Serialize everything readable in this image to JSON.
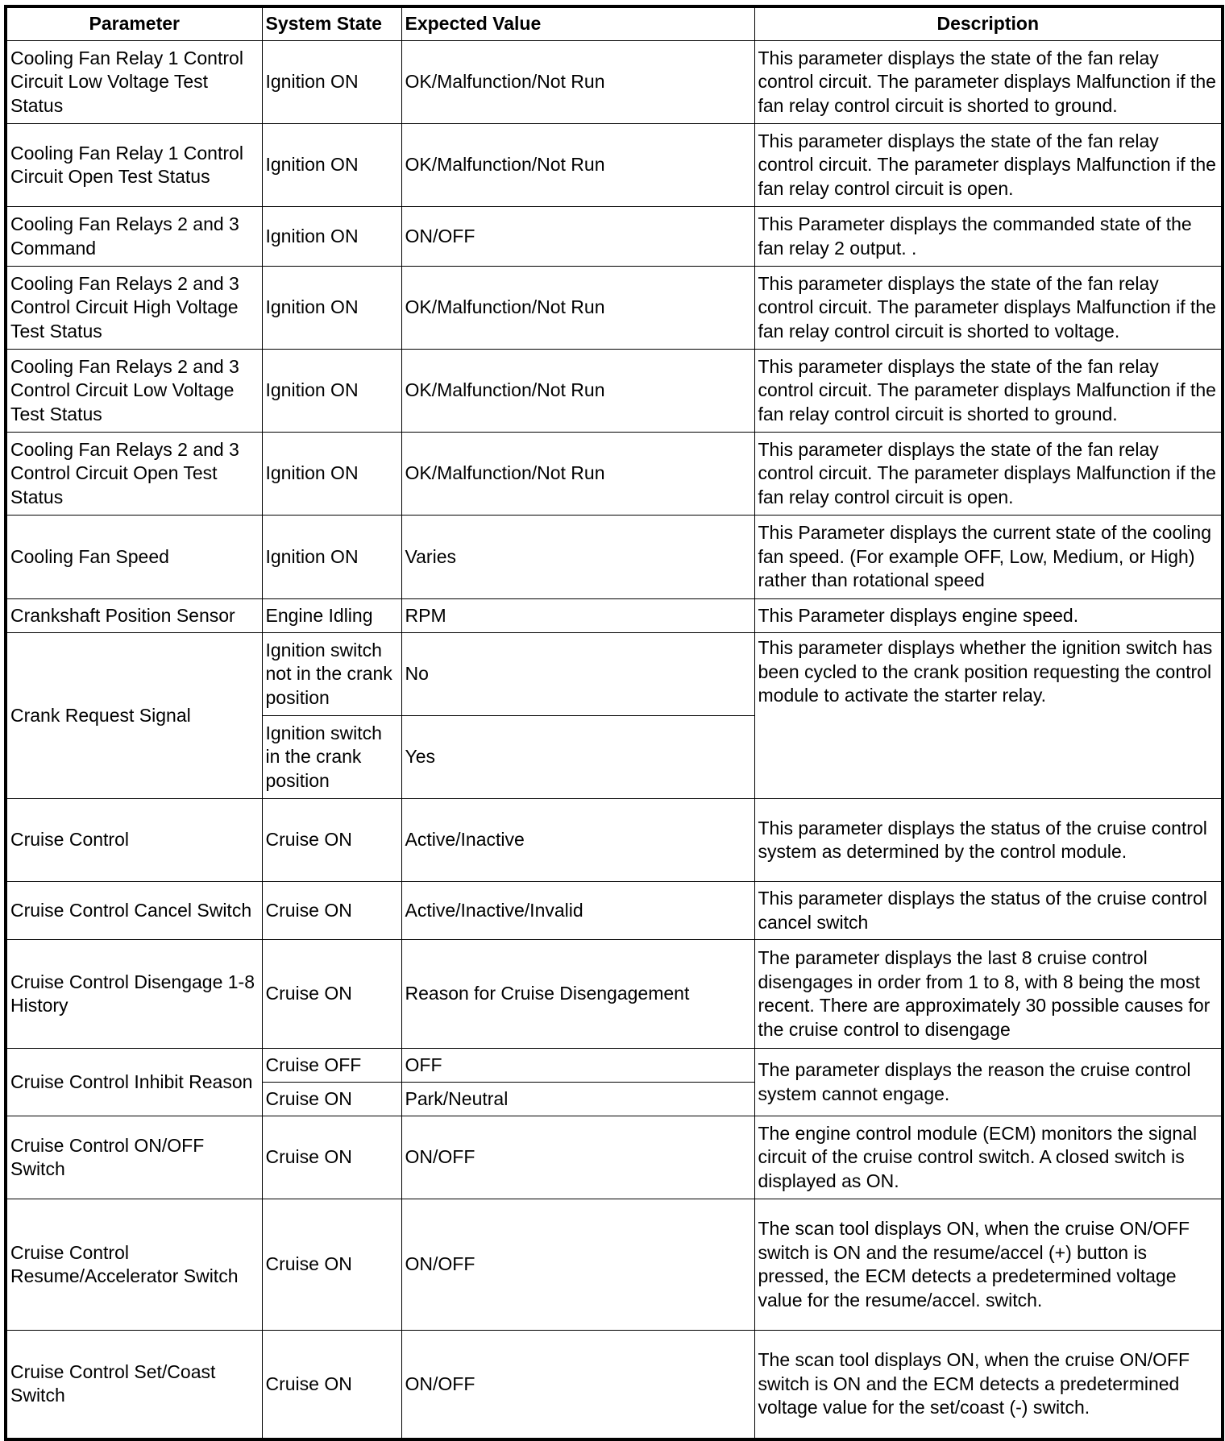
{
  "headers": {
    "parameter": "Parameter",
    "state": "System State",
    "expected": "Expected Value",
    "description": "Description"
  },
  "rows": [
    {
      "parameter": "Cooling Fan Relay 1 Control Circuit Low Voltage Test Status",
      "state": "Ignition ON",
      "expected": "OK/Malfunction/Not Run",
      "description": "This parameter displays the state of the fan relay control circuit. The parameter displays Malfunction if the fan relay control circuit is shorted to ground."
    },
    {
      "parameter": "Cooling Fan Relay 1 Control Circuit Open Test Status",
      "state": "Ignition ON",
      "expected": "OK/Malfunction/Not Run",
      "description": "This parameter displays the state of the fan relay control circuit. The parameter displays Malfunction if the fan relay control circuit is open."
    },
    {
      "parameter": "Cooling Fan Relays 2 and 3 Command",
      "state": "Ignition ON",
      "expected": "ON/OFF",
      "description": "This Parameter displays the commanded state of the fan relay 2 output. ."
    },
    {
      "parameter": "Cooling Fan Relays 2 and 3 Control Circuit High Voltage Test Status",
      "state": "Ignition ON",
      "expected": "OK/Malfunction/Not Run",
      "description": "This parameter displays the state of the fan relay control circuit. The parameter displays Malfunction if the fan relay control circuit is shorted to voltage."
    },
    {
      "parameter": "Cooling Fan Relays 2 and 3 Control Circuit Low Voltage Test Status",
      "state": "Ignition ON",
      "expected": "OK/Malfunction/Not Run",
      "description": "This parameter displays the state of the fan relay control circuit. The parameter displays Malfunction if the fan relay control circuit is shorted to ground."
    },
    {
      "parameter": "Cooling Fan Relays 2 and 3 Control Circuit Open Test Status",
      "state": "Ignition ON",
      "expected": "OK/Malfunction/Not Run",
      "description": "This parameter displays the state of the fan relay control circuit. The parameter displays Malfunction if the fan relay control circuit is open."
    },
    {
      "parameter": "Cooling Fan Speed",
      "state": "Ignition ON",
      "expected": "Varies",
      "description": "This Parameter displays the current state of the cooling fan speed. (For example OFF, Low, Medium, or High) rather than rotational speed"
    },
    {
      "parameter": "Crankshaft Position Sensor",
      "state": "Engine Idling",
      "expected": "RPM",
      "description": "This Parameter displays engine speed."
    },
    {
      "parameter": "Crank Request Signal",
      "state": "Ignition switch not in the crank position",
      "expected": "No",
      "state2": "Ignition switch in the crank position",
      "expected2": "Yes",
      "description": "This parameter displays whether the ignition switch has been cycled to the crank position requesting the control module to activate the starter relay."
    },
    {
      "parameter": "Cruise Control",
      "state": "Cruise ON",
      "expected": "Active/Inactive",
      "description": "This parameter displays the status of the cruise control system as determined by the control module."
    },
    {
      "parameter": "Cruise Control Cancel Switch",
      "state": "Cruise ON",
      "expected": "Active/Inactive/Invalid",
      "description": "This parameter displays the status of the cruise control cancel switch"
    },
    {
      "parameter": "Cruise Control Disengage 1-8 History",
      "state": "Cruise ON",
      "expected": "Reason for Cruise Disengagement",
      "description": "The parameter displays the last 8 cruise control disengages in order from 1 to 8, with 8 being the most recent. There are approximately 30 possible causes for the cruise control to disengage"
    },
    {
      "parameter": "Cruise Control Inhibit Reason",
      "state": "Cruise OFF",
      "expected": "OFF",
      "state2": "Cruise ON",
      "expected2": "Park/Neutral",
      "description": "The parameter displays the reason the cruise control system cannot engage."
    },
    {
      "parameter": "Cruise Control ON/OFF Switch",
      "state": "Cruise ON",
      "expected": "ON/OFF",
      "description": "The engine control module (ECM) monitors the signal circuit of the cruise control switch. A closed switch is displayed as ON."
    },
    {
      "parameter": "Cruise Control Resume/Accelerator Switch",
      "state": "Cruise ON",
      "expected": "ON/OFF",
      "description": "The scan tool displays ON, when the cruise ON/OFF switch is ON and the resume/accel (+) button is pressed, the ECM detects a predetermined voltage value for the resume/accel. switch."
    },
    {
      "parameter": "Cruise Control Set/Coast Switch",
      "state": "Cruise ON",
      "expected": "ON/OFF",
      "description": "The scan tool displays ON, when the cruise ON/OFF switch is ON and the ECM detects a predetermined voltage value for the set/coast (-) switch."
    }
  ]
}
